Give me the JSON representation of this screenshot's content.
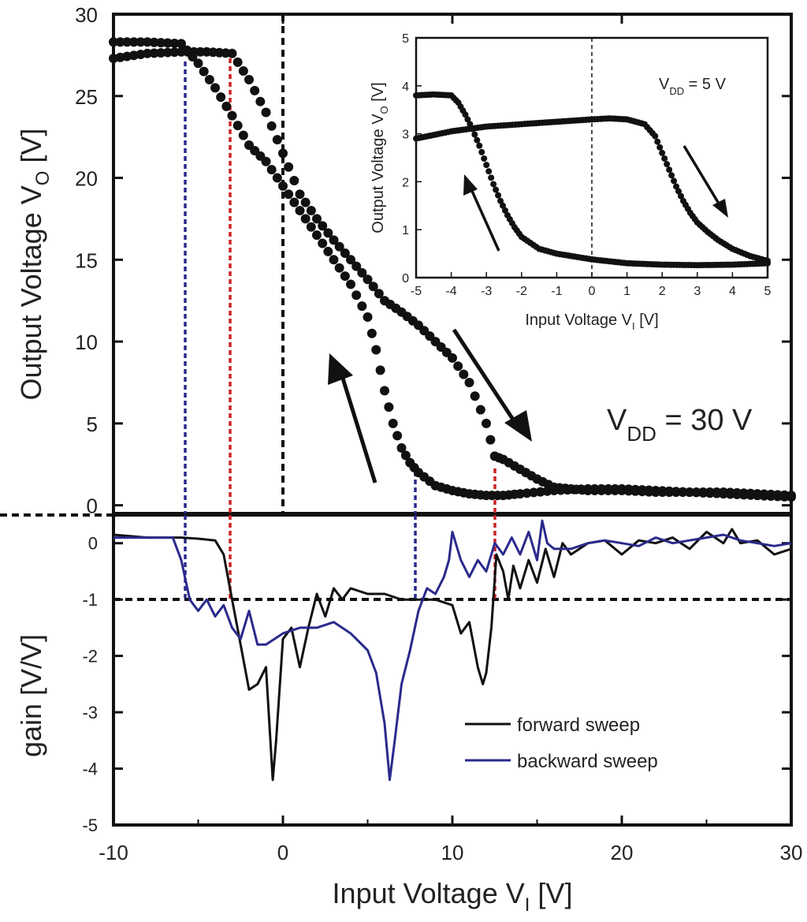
{
  "chart_data": [
    {
      "type": "scatter",
      "panel": "top",
      "ylabel": "Output Voltage V",
      "ylabel_sub": "O",
      "ylabel_unit": " [V]",
      "xlim": [
        -10,
        30
      ],
      "ylim": [
        -0.5,
        30
      ],
      "yticks": [
        "0",
        "5",
        "10",
        "15",
        "20",
        "25",
        "30"
      ],
      "annotation": {
        "main": "V",
        "sub": "DD",
        "rest": " = 30 V"
      },
      "series": [
        {
          "marker": "filled-circle",
          "color": "#111111",
          "x": [
            -10,
            -8,
            -6,
            -4.5,
            -3,
            -2,
            -1,
            0,
            1,
            2,
            3,
            4,
            5,
            6,
            7,
            8,
            9,
            10,
            11,
            12,
            12.5,
            13,
            14,
            15,
            16,
            17,
            18,
            20,
            22,
            24,
            26,
            28,
            30
          ],
          "y": [
            27.3,
            27.6,
            27.7,
            27.7,
            27.6,
            26.0,
            24.0,
            21.5,
            19.0,
            17.5,
            16.2,
            15.0,
            13.8,
            12.5,
            11.8,
            11.0,
            10.0,
            9.0,
            7.5,
            5.0,
            3.0,
            2.8,
            2.2,
            1.6,
            1.1,
            1.0,
            0.9,
            0.9,
            0.8,
            0.8,
            0.7,
            0.6,
            0.5
          ]
        },
        {
          "marker": "filled-circle",
          "color": "#111111",
          "x": [
            -10,
            -8,
            -6,
            -5,
            -4,
            -3,
            -2,
            -1,
            0,
            1,
            2,
            3,
            4,
            5,
            5.5,
            6,
            6.5,
            7,
            7.5,
            8,
            9,
            10,
            11,
            12,
            13,
            14,
            16,
            18,
            20,
            22,
            24,
            26,
            28,
            30
          ],
          "y": [
            28.3,
            28.3,
            28.2,
            27.0,
            25.5,
            23.8,
            22.0,
            21.0,
            19.5,
            18.0,
            16.5,
            15.0,
            13.5,
            11.5,
            9.5,
            7.0,
            5.0,
            3.5,
            2.6,
            2.0,
            1.2,
            0.9,
            0.7,
            0.6,
            0.6,
            0.7,
            0.9,
            1.0,
            1.0,
            0.9,
            0.8,
            0.8,
            0.7,
            0.6
          ]
        }
      ]
    },
    {
      "type": "line",
      "panel": "bottom",
      "xlabel": "Input Voltage V",
      "xlabel_sub": "I",
      "xlabel_unit": " [V]",
      "ylabel": "gain [V/V]",
      "xlim": [
        -10,
        30
      ],
      "ylim": [
        -5,
        0.5
      ],
      "xticks": [
        "-10",
        "0",
        "10",
        "20",
        "30"
      ],
      "yticks": [
        "0",
        "-1",
        "-2",
        "-3",
        "-4",
        "-5"
      ],
      "legend": [
        "forward sweep",
        "backward sweep"
      ],
      "series": [
        {
          "name": "forward sweep",
          "color": "#111111",
          "x": [
            -10,
            -8,
            -6,
            -5,
            -4,
            -3.5,
            -3,
            -2.5,
            -2,
            -1.5,
            -1,
            -0.8,
            -0.6,
            -0.4,
            0,
            0.5,
            1,
            1.5,
            2,
            2.5,
            3,
            3.5,
            4,
            5,
            6,
            7,
            8,
            9,
            10,
            10.5,
            11,
            11.5,
            11.8,
            12,
            12.3,
            12.6,
            13,
            13.3,
            13.6,
            14,
            14.5,
            15,
            15.5,
            16,
            16.5,
            17,
            18,
            19,
            20,
            21,
            22,
            23,
            24,
            25,
            26,
            26.5,
            27,
            28,
            29,
            30
          ],
          "y": [
            0.15,
            0.1,
            0.1,
            0.08,
            0.05,
            -0.2,
            -1.0,
            -1.8,
            -2.6,
            -2.5,
            -2.2,
            -3.2,
            -4.2,
            -3.5,
            -1.7,
            -1.5,
            -2.2,
            -1.5,
            -0.9,
            -1.3,
            -0.8,
            -1.0,
            -0.8,
            -0.9,
            -0.9,
            -1.0,
            -1.0,
            -1.0,
            -1.1,
            -1.6,
            -1.4,
            -2.2,
            -2.5,
            -2.3,
            -1.5,
            -0.2,
            -0.5,
            -1.0,
            -0.4,
            -0.8,
            -0.3,
            -0.7,
            -0.1,
            -0.6,
            0.0,
            -0.2,
            0.0,
            0.05,
            -0.2,
            0.05,
            0.0,
            0.1,
            -0.1,
            0.2,
            0.0,
            0.25,
            0.0,
            0.05,
            -0.2,
            -0.1
          ]
        },
        {
          "name": "backward sweep",
          "color": "#2a2a8c",
          "x": [
            -10,
            -8,
            -7,
            -6.5,
            -6,
            -5.5,
            -5,
            -4.5,
            -4,
            -3.5,
            -3,
            -2.5,
            -2,
            -1.5,
            -1,
            0,
            1,
            2,
            3,
            4,
            5,
            5.5,
            6,
            6.3,
            6.6,
            7,
            7.5,
            8,
            8.5,
            9,
            9.5,
            9.8,
            10,
            10.5,
            11,
            11.5,
            12,
            12.5,
            13,
            13.5,
            14,
            14.5,
            15,
            15.3,
            15.6,
            16,
            17,
            18,
            19,
            20,
            21,
            22,
            23,
            24,
            25,
            26,
            27,
            28,
            29,
            30
          ],
          "y": [
            0.1,
            0.1,
            0.1,
            0.1,
            -0.3,
            -1.0,
            -1.2,
            -1.0,
            -1.3,
            -1.1,
            -1.5,
            -1.7,
            -1.2,
            -1.8,
            -1.8,
            -1.6,
            -1.5,
            -1.5,
            -1.4,
            -1.6,
            -1.9,
            -2.3,
            -3.2,
            -4.2,
            -3.5,
            -2.5,
            -1.9,
            -1.2,
            -0.8,
            -0.9,
            -0.6,
            -0.3,
            0.2,
            -0.3,
            -0.6,
            -0.3,
            -0.5,
            0.0,
            -0.2,
            0.1,
            -0.2,
            0.2,
            -0.3,
            0.4,
            0.0,
            -0.1,
            -0.1,
            0.0,
            0.05,
            0.0,
            -0.05,
            0.1,
            0.0,
            0.05,
            0.1,
            0.15,
            0.05,
            0.0,
            -0.05,
            0.0
          ]
        }
      ]
    },
    {
      "type": "scatter",
      "panel": "inset",
      "xlabel": "Input Voltage V",
      "xlabel_sub": "I",
      "xlabel_unit": " [V]",
      "ylabel": "Output Voltage V",
      "ylabel_sub": "O",
      "ylabel_unit": " [V]",
      "xlim": [
        -5,
        5
      ],
      "ylim": [
        0,
        5
      ],
      "xticks": [
        "-5",
        "-4",
        "-3",
        "-2",
        "-1",
        "0",
        "1",
        "2",
        "3",
        "4",
        "5"
      ],
      "yticks": [
        "0",
        "1",
        "2",
        "3",
        "4",
        "5"
      ],
      "annotation": {
        "main": "V",
        "sub": "DD",
        "rest": " = 5 V"
      },
      "series": [
        {
          "marker": "filled-circle",
          "color": "#111111",
          "x": [
            -5,
            -4,
            -3,
            -2,
            -1,
            0,
            0.5,
            1,
            1.5,
            1.8,
            2,
            2.2,
            2.4,
            2.6,
            2.8,
            3,
            3.3,
            3.6,
            4,
            4.5,
            5
          ],
          "y": [
            2.9,
            3.05,
            3.15,
            3.2,
            3.25,
            3.3,
            3.32,
            3.3,
            3.2,
            2.95,
            2.6,
            2.25,
            1.9,
            1.6,
            1.35,
            1.15,
            0.95,
            0.78,
            0.6,
            0.45,
            0.35
          ]
        },
        {
          "marker": "filled-circle",
          "color": "#111111",
          "x": [
            -5,
            -4.5,
            -4,
            -3.8,
            -3.6,
            -3.4,
            -3.2,
            -3,
            -2.8,
            -2.6,
            -2.4,
            -2.2,
            -2,
            -1.5,
            -1,
            0,
            1,
            2,
            3,
            4,
            5
          ],
          "y": [
            3.8,
            3.82,
            3.8,
            3.65,
            3.4,
            3.1,
            2.75,
            2.35,
            1.95,
            1.6,
            1.3,
            1.05,
            0.85,
            0.6,
            0.5,
            0.38,
            0.3,
            0.27,
            0.26,
            0.27,
            0.3
          ]
        }
      ]
    }
  ]
}
